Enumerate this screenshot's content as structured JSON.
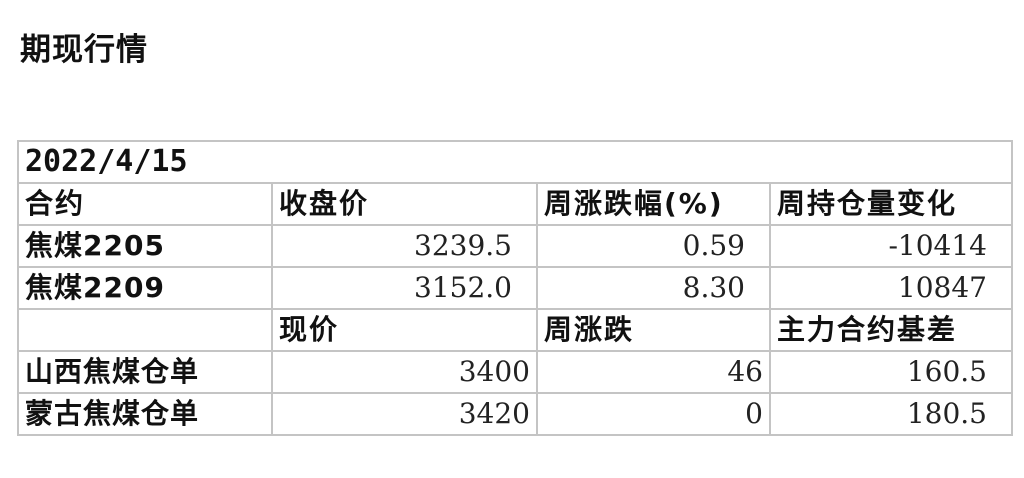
{
  "title": "期现行情",
  "table": {
    "date": "2022/4/15",
    "futures_headers": [
      "合约",
      "收盘价",
      "周涨跌幅(%)",
      "周持仓量变化"
    ],
    "futures_rows": [
      [
        "焦煤2205",
        "3239.5",
        "0.59",
        "-10414"
      ],
      [
        "焦煤2209",
        "3152.0",
        "8.30",
        "10847"
      ]
    ],
    "spot_headers": [
      "",
      "现价",
      "周涨跌",
      "主力合约基差"
    ],
    "spot_rows": [
      [
        "山西焦煤仓单",
        "3400",
        "46",
        "160.5"
      ],
      [
        "蒙古焦煤仓单",
        "3420",
        "0",
        "180.5"
      ]
    ]
  }
}
